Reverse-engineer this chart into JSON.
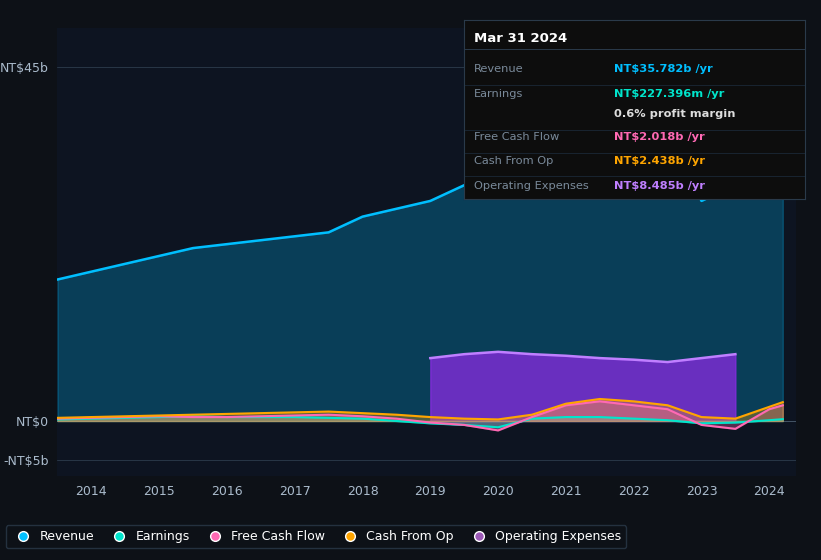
{
  "background_color": "#0d1117",
  "plot_bg_color": "#0d1421",
  "years": [
    2013.5,
    2014,
    2014.5,
    2015,
    2015.5,
    2016,
    2016.5,
    2017,
    2017.5,
    2018,
    2018.5,
    2019,
    2019.5,
    2020,
    2020.5,
    2021,
    2021.5,
    2022,
    2022.5,
    2023,
    2023.5,
    2024,
    2024.2
  ],
  "revenue": [
    18,
    19,
    20,
    21,
    22,
    22.5,
    23,
    23.5,
    24,
    26,
    27,
    28,
    30,
    32,
    35,
    42,
    44,
    42,
    38,
    28,
    30,
    34,
    35.8
  ],
  "earnings": [
    0.2,
    0.3,
    0.4,
    0.5,
    0.6,
    0.5,
    0.5,
    0.5,
    0.4,
    0.3,
    0.0,
    -0.3,
    -0.5,
    -0.8,
    0.3,
    0.5,
    0.5,
    0.3,
    0.1,
    -0.3,
    -0.2,
    0.1,
    0.23
  ],
  "free_cash_flow": [
    0.3,
    0.4,
    0.5,
    0.6,
    0.5,
    0.5,
    0.6,
    0.7,
    0.8,
    0.6,
    0.3,
    -0.2,
    -0.5,
    -1.2,
    0.5,
    2.0,
    2.5,
    2.0,
    1.5,
    -0.5,
    -1.0,
    1.5,
    2.0
  ],
  "cash_from_op": [
    0.4,
    0.5,
    0.6,
    0.7,
    0.8,
    0.9,
    1.0,
    1.1,
    1.2,
    1.0,
    0.8,
    0.5,
    0.3,
    0.2,
    0.8,
    2.2,
    2.8,
    2.5,
    2.0,
    0.5,
    0.3,
    1.8,
    2.4
  ],
  "operating_expenses": [
    8.0,
    8.5,
    8.8,
    8.5,
    8.3,
    8.0,
    7.8,
    7.5,
    8.0,
    8.5
  ],
  "operating_expenses_years": [
    2019.0,
    2019.5,
    2020.0,
    2020.5,
    2021.0,
    2021.5,
    2022.0,
    2022.5,
    2023.0,
    2023.5
  ],
  "revenue_color": "#00bfff",
  "earnings_color": "#00e5cc",
  "free_cash_flow_color": "#ff69b4",
  "cash_from_op_color": "#ffa500",
  "operating_expenses_color": "#8a2be2",
  "operating_expenses_line_color": "#bf7fff",
  "ylim_min": -7,
  "ylim_max": 50,
  "yticks": [
    -5,
    0,
    45
  ],
  "ytick_labels": [
    "-NT$5b",
    "NT$0",
    "NT$45b"
  ],
  "xtick_years": [
    2014,
    2015,
    2016,
    2017,
    2018,
    2019,
    2020,
    2021,
    2022,
    2023,
    2024
  ],
  "tooltip": {
    "title": "Mar 31 2024",
    "revenue_label": "Revenue",
    "revenue_val": "NT$35.782b /yr",
    "earnings_label": "Earnings",
    "earnings_val": "NT$227.396m /yr",
    "profit_margin": "0.6% profit margin",
    "fcf_label": "Free Cash Flow",
    "fcf_val": "NT$2.018b /yr",
    "cashop_label": "Cash From Op",
    "cashop_val": "NT$2.438b /yr",
    "opex_label": "Operating Expenses",
    "opex_val": "NT$8.485b /yr",
    "revenue_color": "#00bfff",
    "earnings_color": "#00e5cc",
    "fcf_color": "#ff69b4",
    "cashop_color": "#ffa500",
    "opex_color": "#bf7fff"
  },
  "legend_items": [
    {
      "label": "Revenue",
      "color": "#00bfff"
    },
    {
      "label": "Earnings",
      "color": "#00e5cc"
    },
    {
      "label": "Free Cash Flow",
      "color": "#ff69b4"
    },
    {
      "label": "Cash From Op",
      "color": "#ffa500"
    },
    {
      "label": "Operating Expenses",
      "color": "#9b59b6"
    }
  ]
}
